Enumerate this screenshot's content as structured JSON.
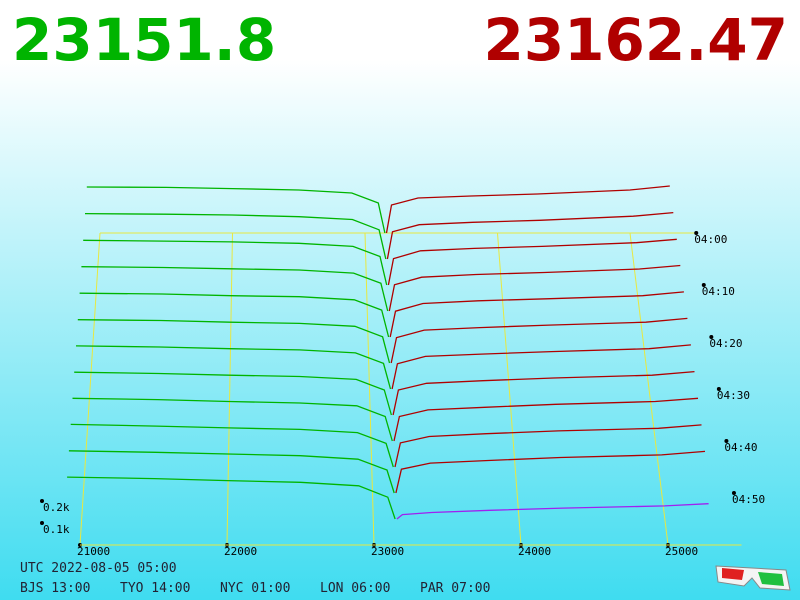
{
  "chart_data": {
    "type": "depth3d",
    "bid_label": "23151.8",
    "ask_label": "23162.47",
    "bid_color": "#00b400",
    "ask_color": "#b00000",
    "latest_ask_color": "#a020f0",
    "xlim": [
      21000,
      25500
    ],
    "xticks": [
      21000,
      22000,
      23000,
      24000,
      25000
    ],
    "tlim": [
      0,
      60
    ],
    "tticks": [
      {
        "value": 0,
        "label": "04:00"
      },
      {
        "value": 10,
        "label": "04:10"
      },
      {
        "value": 20,
        "label": "04:20"
      },
      {
        "value": 30,
        "label": "04:30"
      },
      {
        "value": 40,
        "label": "04:40"
      },
      {
        "value": 50,
        "label": "04:50"
      }
    ],
    "zticks": [
      {
        "value": 100,
        "label": "0.1k"
      },
      {
        "value": 200,
        "label": "0.2k"
      }
    ],
    "bid_prices": [
      20900,
      21500,
      22000,
      22500,
      22900,
      23100,
      23150
    ],
    "ask_prices": [
      23162,
      23200,
      23400,
      23800,
      24300,
      25000,
      25300
    ],
    "snapshots": [
      {
        "minute": 0,
        "bids": [
          230,
          228,
          222,
          215,
          200,
          150,
          0
        ],
        "asks": [
          0,
          140,
          175,
          185,
          195,
          215,
          235
        ]
      },
      {
        "minute": 5,
        "bids": [
          225,
          222,
          218,
          210,
          196,
          145,
          0
        ],
        "asks": [
          0,
          135,
          170,
          182,
          192,
          212,
          230
        ]
      },
      {
        "minute": 10,
        "bids": [
          220,
          216,
          212,
          205,
          190,
          140,
          0
        ],
        "asks": [
          0,
          130,
          168,
          180,
          190,
          208,
          225
        ]
      },
      {
        "minute": 15,
        "bids": [
          216,
          212,
          206,
          200,
          185,
          135,
          0
        ],
        "asks": [
          0,
          128,
          165,
          178,
          188,
          205,
          222
        ]
      },
      {
        "minute": 20,
        "bids": [
          212,
          208,
          200,
          195,
          180,
          130,
          0
        ],
        "asks": [
          0,
          125,
          162,
          175,
          185,
          200,
          218
        ]
      },
      {
        "minute": 25,
        "bids": [
          208,
          204,
          196,
          190,
          176,
          126,
          0
        ],
        "asks": [
          0,
          122,
          158,
          170,
          182,
          196,
          214
        ]
      },
      {
        "minute": 30,
        "bids": [
          205,
          200,
          192,
          186,
          172,
          122,
          0
        ],
        "asks": [
          0,
          120,
          155,
          166,
          178,
          192,
          210
        ]
      },
      {
        "minute": 35,
        "bids": [
          202,
          196,
          188,
          182,
          168,
          118,
          0
        ],
        "asks": [
          0,
          118,
          150,
          162,
          175,
          188,
          205
        ]
      },
      {
        "minute": 40,
        "bids": [
          200,
          194,
          185,
          178,
          165,
          115,
          0
        ],
        "asks": [
          0,
          115,
          146,
          158,
          172,
          185,
          200
        ]
      },
      {
        "minute": 45,
        "bids": [
          198,
          190,
          182,
          175,
          160,
          110,
          0
        ],
        "asks": [
          0,
          112,
          142,
          155,
          168,
          180,
          196
        ]
      },
      {
        "minute": 50,
        "bids": [
          195,
          188,
          180,
          172,
          156,
          106,
          0
        ],
        "asks": [
          0,
          110,
          138,
          150,
          164,
          176,
          192
        ]
      },
      {
        "minute": 55,
        "bids": [
          192,
          185,
          176,
          168,
          152,
          100,
          0
        ],
        "asks": [
          0,
          20,
          30,
          40,
          50,
          60,
          70
        ]
      }
    ],
    "footer": {
      "utc": "UTC 2022-08-05 05:00",
      "cities": [
        "BJS 13:00",
        "TYO 14:00",
        "NYC 01:00",
        "LON 06:00",
        "PAR 07:00"
      ]
    }
  }
}
